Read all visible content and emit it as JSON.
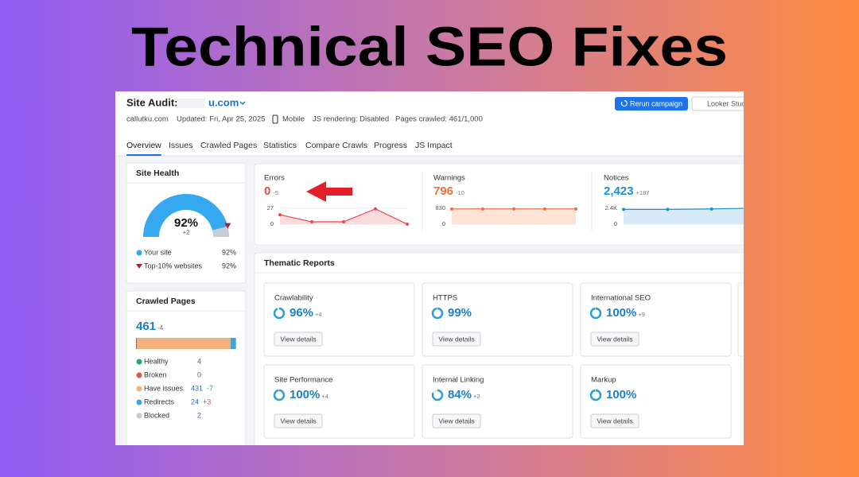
{
  "title": "Technical SEO Fixes",
  "header": {
    "label": "Site Audit:",
    "domain": "u.com",
    "site": "callutku.com",
    "updated": "Updated: Fri, Apr 25, 2025",
    "device": "Mobile",
    "js_rendering": "JS rendering: Disabled",
    "pages_crawled": "Pages crawled: 461/1,000",
    "rerun_button": "Rerun campaign",
    "looker_button": "Looker Stud"
  },
  "tabs": [
    "Overview",
    "Issues",
    "Crawled Pages",
    "Statistics",
    "Compare Crawls",
    "Progress",
    "JS Impact"
  ],
  "site_health": {
    "title": "Site Health",
    "score": {
      "value": 92,
      "label": "92%"
    },
    "delta": "+2",
    "legend": [
      {
        "label": "Your site",
        "value": "92%",
        "color": "#35a8f0"
      },
      {
        "label": "Top-10% websites",
        "value": "92%",
        "color": "#a8213a"
      }
    ]
  },
  "metrics": [
    {
      "label": "Errors",
      "value": "0",
      "delta": "-5",
      "color": "#e5484d",
      "fill": "#fbdcdc",
      "ylim": [
        0,
        27
      ],
      "yticks": [
        0,
        27
      ],
      "values": [
        16,
        4,
        4,
        26,
        0
      ]
    },
    {
      "label": "Warnings",
      "value": "796",
      "delta": "-10",
      "color": "#e8713c",
      "fill": "#fde3d3",
      "ylim": [
        0,
        830
      ],
      "yticks": [
        0,
        830
      ],
      "values": [
        796,
        796,
        796,
        796,
        796
      ]
    },
    {
      "label": "Notices",
      "value": "2,423",
      "delta": "+187",
      "color": "#1a8fd6",
      "fill": "#d6ebf7",
      "ylim": [
        0,
        2400
      ],
      "yticks": [
        0,
        {
          "value": 2400,
          "label": "2.4K"
        }
      ],
      "values": [
        2236,
        2236,
        2300,
        2423
      ]
    }
  ],
  "thematic": {
    "title": "Thematic Reports",
    "reports": [
      {
        "name": "Crawlability",
        "score": {
          "value": 96,
          "label": "96%"
        },
        "delta": "+4",
        "button": "View details"
      },
      {
        "name": "HTTPS",
        "score": {
          "value": 99,
          "label": "99%"
        },
        "button": "View details"
      },
      {
        "name": "International SEO",
        "score": {
          "value": 100,
          "label": "100%"
        },
        "delta": "+9",
        "button": "View details"
      },
      {
        "name": "Site Performance",
        "score": {
          "value": 100,
          "label": "100%"
        },
        "delta": "+4",
        "button": "View details"
      },
      {
        "name": "Internal Linking",
        "score": {
          "value": 84,
          "label": "84%"
        },
        "delta": "+2",
        "button": "View details"
      },
      {
        "name": "Markup",
        "score": {
          "value": 100,
          "label": "100%"
        },
        "button": "View details"
      }
    ]
  },
  "crawled_pages": {
    "title": "Crawled Pages",
    "total": "461",
    "delta": "-4",
    "items": [
      {
        "label": "Healthy",
        "value": 4,
        "color": "#21a67a"
      },
      {
        "label": "Broken",
        "value": 0,
        "color": "#d9534f"
      },
      {
        "label": "Have issues",
        "value": 431,
        "delta": "-7",
        "color": "#f5b07d"
      },
      {
        "label": "Redirects",
        "value": 24,
        "delta": "+3",
        "color": "#3ea6dc"
      },
      {
        "label": "Blocked",
        "value": 2,
        "color": "#c5c8cf"
      }
    ]
  }
}
